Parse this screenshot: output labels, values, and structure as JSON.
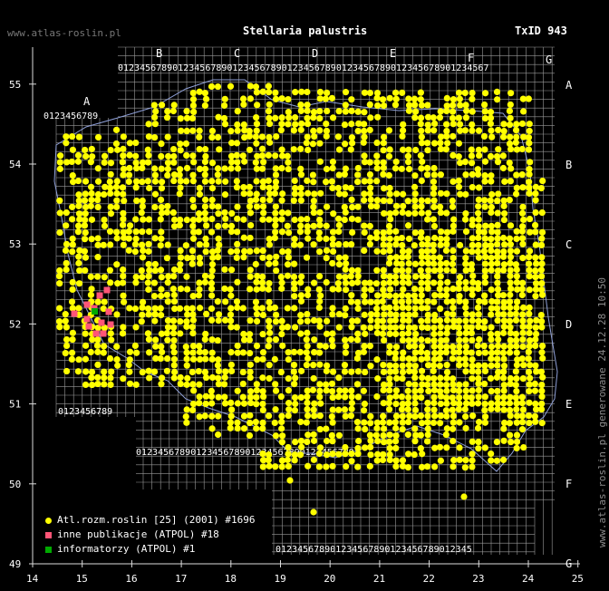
{
  "header": {
    "site": "www.atlas-roslin.pl",
    "title": "Stellaria palustris",
    "taxid": "TxID 943"
  },
  "footer": "www.atlas-roslin.pl generowane 24.12.28 10:50",
  "map": {
    "type": "species distribution map (ATPOL grid over Poland)",
    "x_axis": {
      "label_values": [
        "14",
        "15",
        "16",
        "17",
        "18",
        "19",
        "20",
        "21",
        "22",
        "23",
        "24",
        "25"
      ],
      "range": [
        14,
        25
      ]
    },
    "y_axis": {
      "label_values": [
        "49",
        "50",
        "51",
        "52",
        "53",
        "54",
        "55"
      ],
      "range": [
        49,
        55.6
      ]
    },
    "grid_column_letters": [
      "A",
      "B",
      "C",
      "D",
      "E",
      "F",
      "G"
    ],
    "grid_row_letters": [
      "A",
      "B",
      "C",
      "D",
      "E",
      "F",
      "G"
    ],
    "grid_digits": "0123456789",
    "colors": {
      "background": "#000000",
      "grid": "#9a9a9a",
      "border": "#8fa0d8",
      "dot": "#ffff00",
      "publication": "#ff5577",
      "informator": "#00aa00"
    }
  },
  "legend": [
    {
      "label": "Atl.rozm.roslin [25] (2001) #1696",
      "color": "#ffff00",
      "shape": "dot"
    },
    {
      "label": "inne publikacje (ATPOL) #18",
      "color": "#ff5577",
      "shape": "square"
    },
    {
      "label": "informatorzy (ATPOL) #1",
      "color": "#00aa00",
      "shape": "square"
    }
  ],
  "chart_data": {
    "type": "scatter",
    "title": "Stellaria palustris",
    "xlabel": "",
    "ylabel": "",
    "xlim": [
      14,
      25
    ],
    "ylim": [
      49,
      55.6
    ],
    "series": [
      {
        "name": "Atl.rozm.roslin [25] (2001) #1696",
        "count": 1696
      },
      {
        "name": "inne publikacje (ATPOL) #18",
        "count": 18
      },
      {
        "name": "informatorzy (ATPOL) #1",
        "count": 1
      }
    ]
  }
}
